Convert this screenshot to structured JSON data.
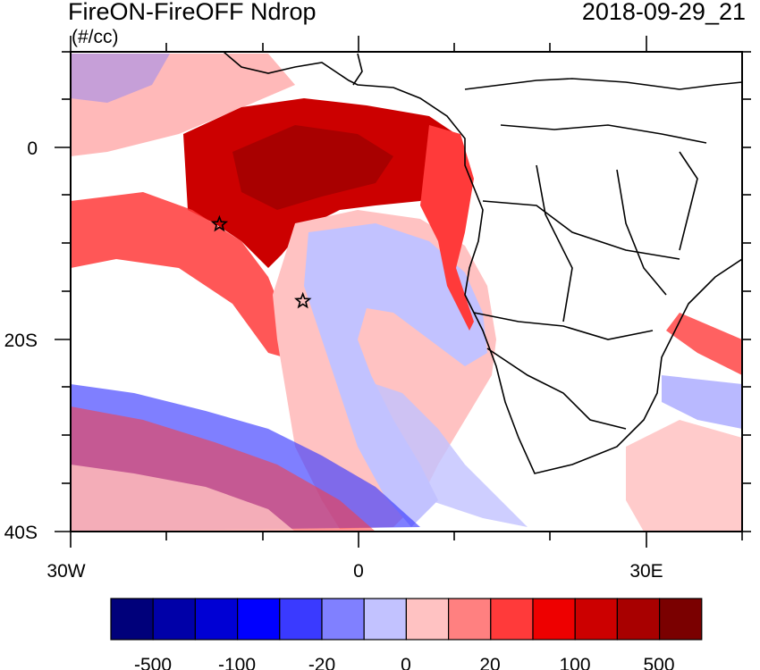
{
  "header": {
    "title": "FireON-FireOFF Ndrop",
    "units": "(#/cc)",
    "datetime": "2018-09-29_21"
  },
  "axes": {
    "lat_labels": [
      "0",
      "20S",
      "40S"
    ],
    "lon_labels": [
      "30W",
      "0",
      "30E"
    ]
  },
  "colorbar": {
    "colors": [
      "#00007a",
      "#0000a8",
      "#0000d4",
      "#0000ff",
      "#3a3aff",
      "#8080ff",
      "#c2c2ff",
      "#ffc2c2",
      "#ff8080",
      "#ff3a3a",
      "#ee0000",
      "#cc0000",
      "#a80000",
      "#7a0000"
    ],
    "labels": [
      "-500",
      "-100",
      "-20",
      "0",
      "20",
      "100",
      "500"
    ]
  },
  "markers": [
    {
      "name": "star-marker-north",
      "lon_deg": -14.5,
      "lat_deg": -8
    },
    {
      "name": "star-marker-south",
      "lon_deg": -5.8,
      "lat_deg": -16
    }
  ]
}
